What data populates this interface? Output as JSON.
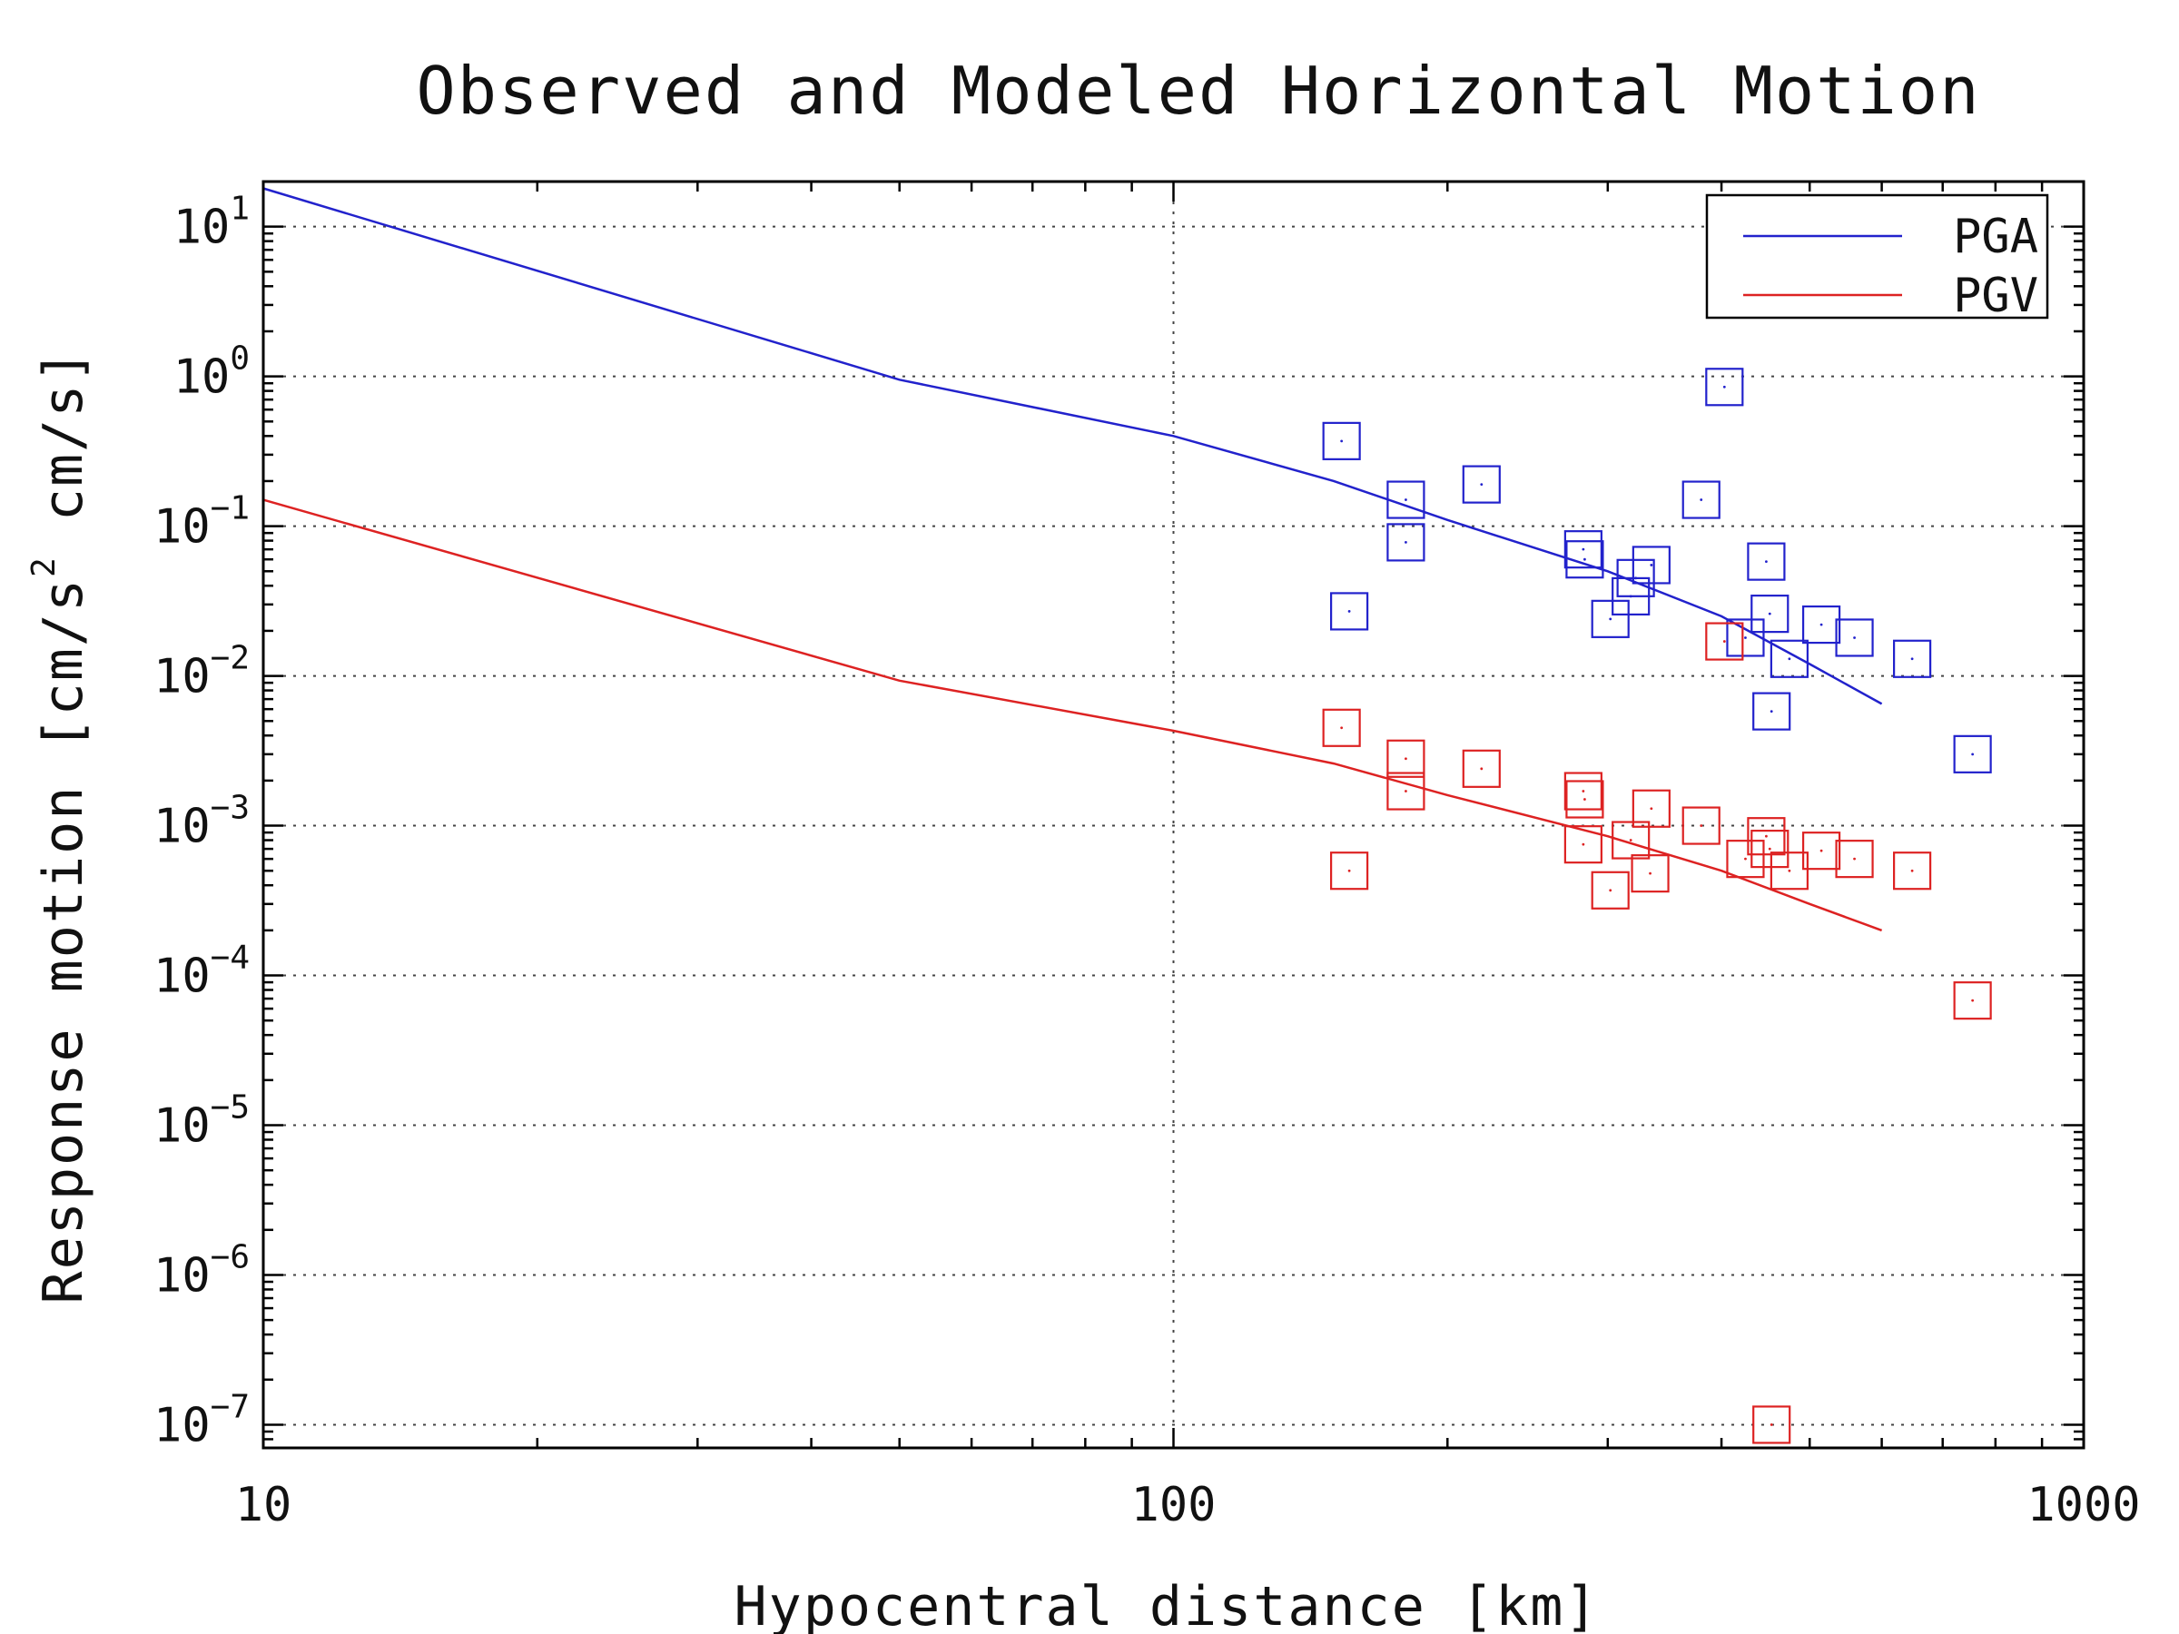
{
  "chart_data": {
    "type": "scatter",
    "title": "Observed and Modeled Horizontal Motion",
    "xlabel": "Hypocentral distance [km]",
    "ylabel_parts": {
      "prefix": "Response motion  [cm/s",
      "sup": "2",
      "suffix": "   cm/s]"
    },
    "x_scale": "log",
    "y_scale": "log",
    "xlim": [
      10,
      1000
    ],
    "ylim": [
      7e-08,
      20
    ],
    "grid": true,
    "x_ticks": [
      {
        "value": 10,
        "label": "10"
      },
      {
        "value": 100,
        "label": "100"
      },
      {
        "value": 1000,
        "label": "1000"
      }
    ],
    "y_ticks": [
      {
        "value": 10,
        "base": "10",
        "exp": "1"
      },
      {
        "value": 1,
        "base": "10",
        "exp": "0"
      },
      {
        "value": 0.1,
        "base": "10",
        "exp": "−1"
      },
      {
        "value": 0.01,
        "base": "10",
        "exp": "−2"
      },
      {
        "value": 0.001,
        "base": "10",
        "exp": "−3"
      },
      {
        "value": 0.0001,
        "base": "10",
        "exp": "−4"
      },
      {
        "value": 1e-05,
        "base": "10",
        "exp": "−5"
      },
      {
        "value": 1e-06,
        "base": "10",
        "exp": "−6"
      },
      {
        "value": 1e-07,
        "base": "10",
        "exp": "−7"
      }
    ],
    "legend": {
      "position": "top-right",
      "entries": [
        {
          "name": "PGA",
          "color": "#2222cc"
        },
        {
          "name": "PGV",
          "color": "#dd2222"
        }
      ]
    },
    "series": [
      {
        "name": "PGA",
        "kind": "model-line",
        "color": "#2222cc",
        "x": [
          10,
          50,
          100,
          150,
          200,
          300,
          400,
          500,
          600
        ],
        "y": [
          18,
          0.95,
          0.4,
          0.2,
          0.11,
          0.05,
          0.025,
          0.012,
          0.0065
        ]
      },
      {
        "name": "PGV",
        "kind": "model-line",
        "color": "#dd2222",
        "x": [
          10,
          50,
          100,
          150,
          200,
          300,
          400,
          500,
          600
        ],
        "y": [
          0.15,
          0.0093,
          0.0043,
          0.0026,
          0.0016,
          0.00085,
          0.0005,
          0.0003,
          0.0002
        ]
      },
      {
        "name": "PGA",
        "kind": "observed",
        "color": "#2222cc",
        "x": [
          153,
          156,
          180,
          180,
          218,
          282,
          283,
          302,
          318,
          335,
          322,
          380,
          403,
          425,
          454,
          452,
          448,
          475,
          515,
          560,
          648,
          755
        ],
        "y": [
          0.37,
          0.027,
          0.15,
          0.078,
          0.19,
          0.07,
          0.06,
          0.024,
          0.034,
          0.055,
          0.045,
          0.15,
          0.85,
          0.018,
          0.0058,
          0.026,
          0.058,
          0.013,
          0.022,
          0.018,
          0.013,
          0.003
        ]
      },
      {
        "name": "PGV",
        "kind": "observed",
        "color": "#dd2222",
        "x": [
          153,
          156,
          180,
          180,
          218,
          282,
          283,
          282,
          302,
          318,
          335,
          334,
          380,
          403,
          425,
          454,
          452,
          448,
          475,
          515,
          560,
          648,
          755
        ],
        "y": [
          0.0045,
          0.0005,
          0.0028,
          0.0017,
          0.0024,
          0.0017,
          0.0015,
          0.00075,
          0.00037,
          0.0008,
          0.0013,
          0.00048,
          0.001,
          0.017,
          0.0006,
          1e-07,
          0.0007,
          0.00085,
          0.0005,
          0.00068,
          0.0006,
          0.0005,
          6.8e-05
        ]
      }
    ]
  }
}
